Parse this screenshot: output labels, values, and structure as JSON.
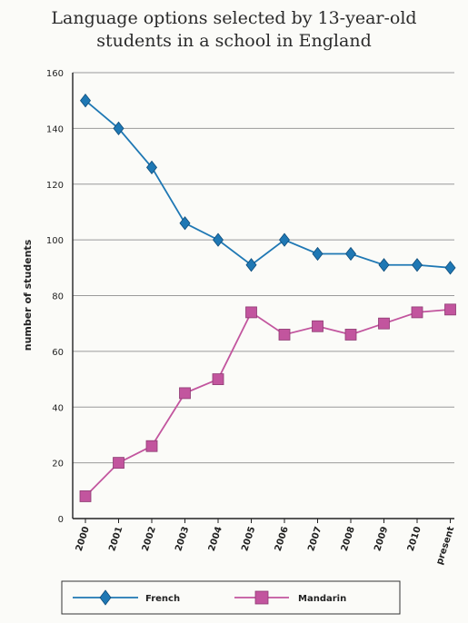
{
  "chart_data": {
    "type": "line",
    "title_line1": "Language options selected by 13-year-old",
    "title_line2": "students in a school in England",
    "ylabel": "number of students",
    "xlabel": "",
    "categories": [
      "2000",
      "2001",
      "2002",
      "2003",
      "2004",
      "2005",
      "2006",
      "2007",
      "2008",
      "2009",
      "2010",
      "present"
    ],
    "ylim": [
      0,
      160
    ],
    "yticks": [
      0,
      20,
      40,
      60,
      80,
      100,
      120,
      140,
      160
    ],
    "grid": true,
    "legend_position": "bottom",
    "series": [
      {
        "name": "French",
        "color": "#1f78b4",
        "marker": "diamond",
        "values": [
          150,
          140,
          126,
          106,
          100,
          91,
          100,
          95,
          95,
          91,
          91,
          90
        ]
      },
      {
        "name": "Mandarin",
        "color": "#c2559e",
        "marker": "square",
        "values": [
          8,
          20,
          26,
          45,
          50,
          74,
          66,
          69,
          66,
          70,
          74,
          75
        ]
      }
    ]
  }
}
